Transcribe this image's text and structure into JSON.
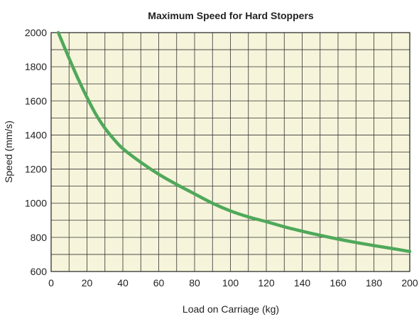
{
  "chart_data": {
    "type": "line",
    "title": "Maximum Speed for Hard Stoppers",
    "xlabel": "Load on Carriage (kg)",
    "ylabel": "Speed (mm/s)",
    "xlim": [
      0,
      200
    ],
    "ylim": [
      600,
      2000
    ],
    "x_ticks": [
      0,
      20,
      40,
      60,
      80,
      100,
      120,
      140,
      160,
      180,
      200
    ],
    "y_ticks": [
      600,
      800,
      1000,
      1200,
      1400,
      1600,
      1800,
      2000
    ],
    "grid": true,
    "legend": "none",
    "series": [
      {
        "x": [
          4,
          10,
          15,
          20,
          25,
          30,
          35,
          40,
          50,
          60,
          70,
          80,
          90,
          100,
          110,
          120,
          130,
          140,
          150,
          160,
          170,
          180,
          190,
          200
        ],
        "y": [
          2000,
          1850,
          1730,
          1620,
          1520,
          1440,
          1375,
          1320,
          1240,
          1170,
          1110,
          1055,
          1000,
          955,
          920,
          892,
          862,
          836,
          812,
          790,
          770,
          752,
          735,
          717
        ]
      }
    ],
    "colors": {
      "line": "#4fa85a",
      "plot_background": "#f6f4da",
      "grid": "#333333"
    }
  }
}
